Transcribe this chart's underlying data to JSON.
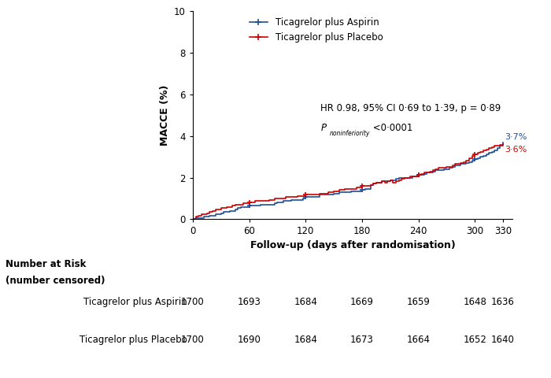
{
  "title": "",
  "xlabel": "Follow-up (days after randomisation)",
  "ylabel": "MACCE (%)",
  "xlim": [
    0,
    340
  ],
  "ylim": [
    0,
    10
  ],
  "xticks": [
    0,
    60,
    120,
    180,
    240,
    300,
    330
  ],
  "yticks": [
    0,
    2,
    4,
    6,
    8,
    10
  ],
  "aspirin_color": "#1f4e9a",
  "placebo_color": "#cc0000",
  "aspirin_label": "Ticagrelor plus Aspirin",
  "placebo_label": "Ticagrelor plus Placebo",
  "annotation_text1": "HR 0.98, 95% CI 0·69 to 1·39, p = 0·89",
  "end_label_aspirin": "3·7%",
  "end_label_placebo": "3·6%",
  "risk_header_line1": "Number at Risk",
  "risk_header_line2": "(number censored)",
  "risk_times": [
    0,
    60,
    120,
    180,
    240,
    300,
    330
  ],
  "risk_aspirin": [
    1700,
    1693,
    1684,
    1669,
    1659,
    1648,
    1636
  ],
  "risk_placebo": [
    1700,
    1690,
    1684,
    1673,
    1664,
    1652,
    1640
  ],
  "aspirin_x": [
    0,
    3,
    6,
    9,
    12,
    15,
    18,
    21,
    24,
    27,
    30,
    33,
    36,
    39,
    42,
    45,
    48,
    51,
    54,
    57,
    60,
    63,
    66,
    69,
    72,
    75,
    78,
    81,
    84,
    87,
    90,
    93,
    96,
    99,
    102,
    105,
    108,
    111,
    114,
    117,
    120,
    123,
    126,
    129,
    132,
    135,
    138,
    141,
    144,
    147,
    150,
    153,
    156,
    159,
    162,
    165,
    168,
    171,
    174,
    177,
    180,
    183,
    186,
    189,
    192,
    195,
    198,
    201,
    204,
    207,
    210,
    213,
    216,
    219,
    222,
    225,
    228,
    231,
    234,
    237,
    240,
    243,
    246,
    249,
    252,
    255,
    258,
    261,
    264,
    267,
    270,
    273,
    276,
    279,
    282,
    285,
    288,
    291,
    294,
    297,
    300,
    303,
    306,
    309,
    312,
    315,
    318,
    321,
    324,
    327,
    330
  ],
  "aspirin_y": [
    0,
    0.05,
    0.06,
    0.06,
    0.12,
    0.12,
    0.18,
    0.18,
    0.24,
    0.24,
    0.29,
    0.35,
    0.35,
    0.41,
    0.41,
    0.47,
    0.53,
    0.59,
    0.59,
    0.59,
    0.65,
    0.65,
    0.65,
    0.65,
    0.71,
    0.71,
    0.71,
    0.71,
    0.71,
    0.76,
    0.82,
    0.82,
    0.88,
    0.88,
    0.88,
    0.94,
    0.94,
    0.94,
    0.94,
    1.0,
    1.06,
    1.06,
    1.06,
    1.06,
    1.06,
    1.18,
    1.18,
    1.18,
    1.18,
    1.18,
    1.24,
    1.24,
    1.29,
    1.29,
    1.29,
    1.29,
    1.35,
    1.35,
    1.35,
    1.35,
    1.41,
    1.47,
    1.47,
    1.65,
    1.71,
    1.76,
    1.76,
    1.82,
    1.82,
    1.82,
    1.88,
    1.88,
    1.94,
    2.0,
    2.0,
    2.0,
    2.0,
    2.0,
    2.06,
    2.06,
    2.12,
    2.12,
    2.18,
    2.24,
    2.24,
    2.29,
    2.35,
    2.35,
    2.35,
    2.41,
    2.41,
    2.47,
    2.53,
    2.59,
    2.59,
    2.65,
    2.65,
    2.71,
    2.76,
    2.82,
    2.88,
    2.94,
    3.0,
    3.06,
    3.12,
    3.18,
    3.24,
    3.3,
    3.41,
    3.53,
    3.7
  ],
  "placebo_x": [
    0,
    3,
    6,
    9,
    12,
    15,
    18,
    21,
    24,
    27,
    30,
    33,
    36,
    39,
    42,
    45,
    48,
    51,
    54,
    57,
    60,
    63,
    66,
    69,
    72,
    75,
    78,
    81,
    84,
    87,
    90,
    93,
    96,
    99,
    102,
    105,
    108,
    111,
    114,
    117,
    120,
    123,
    126,
    129,
    132,
    135,
    138,
    141,
    144,
    147,
    150,
    153,
    156,
    159,
    162,
    165,
    168,
    171,
    174,
    177,
    180,
    183,
    186,
    189,
    192,
    195,
    198,
    201,
    204,
    207,
    210,
    213,
    216,
    219,
    222,
    225,
    228,
    231,
    234,
    237,
    240,
    243,
    246,
    249,
    252,
    255,
    258,
    261,
    264,
    267,
    270,
    273,
    276,
    279,
    282,
    285,
    288,
    291,
    294,
    297,
    300,
    303,
    306,
    309,
    312,
    315,
    318,
    321,
    324,
    327,
    330
  ],
  "placebo_y": [
    0,
    0.12,
    0.18,
    0.24,
    0.24,
    0.29,
    0.35,
    0.41,
    0.47,
    0.47,
    0.53,
    0.53,
    0.59,
    0.59,
    0.65,
    0.71,
    0.71,
    0.71,
    0.76,
    0.76,
    0.82,
    0.82,
    0.88,
    0.88,
    0.88,
    0.88,
    0.88,
    0.94,
    0.94,
    1.0,
    1.0,
    1.0,
    1.0,
    1.06,
    1.06,
    1.06,
    1.06,
    1.12,
    1.12,
    1.12,
    1.18,
    1.18,
    1.18,
    1.18,
    1.18,
    1.24,
    1.24,
    1.24,
    1.29,
    1.29,
    1.35,
    1.35,
    1.41,
    1.41,
    1.47,
    1.47,
    1.47,
    1.47,
    1.53,
    1.53,
    1.59,
    1.59,
    1.59,
    1.65,
    1.71,
    1.76,
    1.76,
    1.82,
    1.76,
    1.82,
    1.88,
    1.76,
    1.82,
    1.88,
    1.94,
    2.0,
    2.0,
    2.06,
    2.06,
    2.06,
    2.12,
    2.18,
    2.24,
    2.24,
    2.29,
    2.35,
    2.41,
    2.47,
    2.47,
    2.47,
    2.53,
    2.53,
    2.59,
    2.65,
    2.65,
    2.71,
    2.76,
    2.82,
    2.94,
    3.06,
    3.12,
    3.18,
    3.24,
    3.3,
    3.35,
    3.41,
    3.47,
    3.53,
    3.53,
    3.59,
    3.6
  ]
}
